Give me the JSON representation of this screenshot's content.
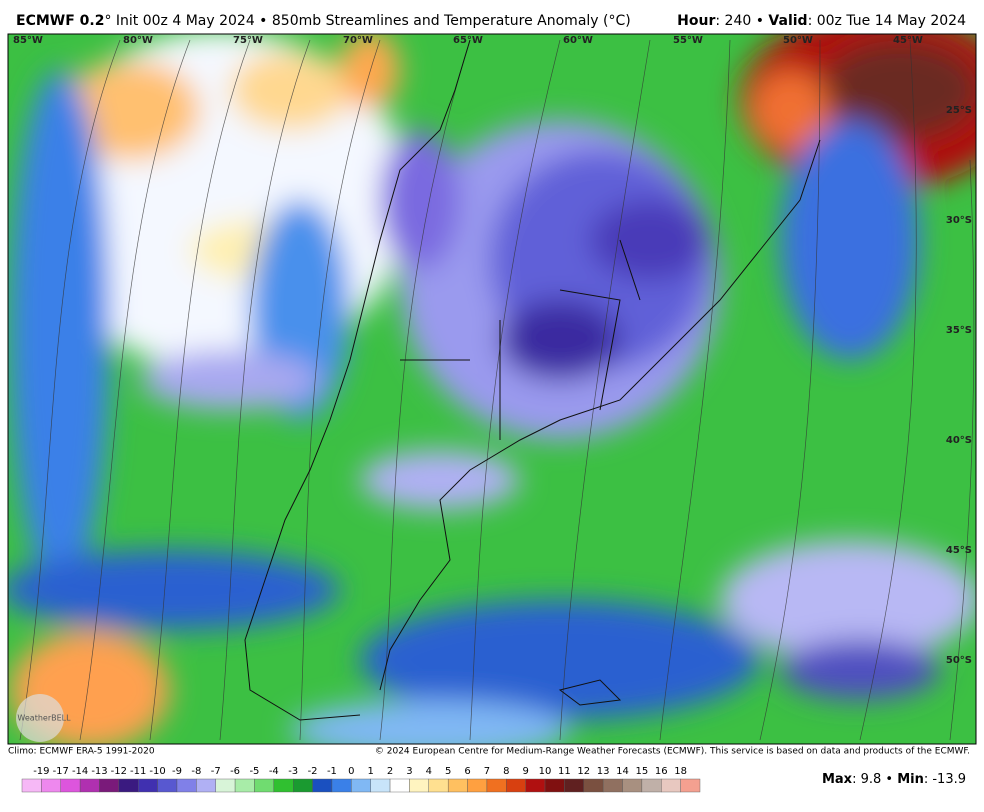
{
  "header": {
    "model": "ECMWF 0.2",
    "title_rest": "° Init 00z 4 May 2024 • 850mb Streamlines and Temperature Anomaly (°C)",
    "hour_label": "Hour",
    "hour_value": ": 240 • ",
    "valid_label": "Valid",
    "valid_value": ": 00z Tue 14 May 2024"
  },
  "map": {
    "lon_labels": [
      "85°W",
      "80°W",
      "75°W",
      "70°W",
      "65°W",
      "60°W",
      "55°W",
      "50°W",
      "45°W"
    ],
    "lat_labels": [
      "25°S",
      "30°S",
      "35°S",
      "40°S",
      "45°S",
      "50°S"
    ],
    "logo": "WeatherBELL"
  },
  "footer": {
    "climo": "Climo: ECMWF ERA-5 1991-2020",
    "copyright": "© 2024 European Centre for Medium-Range Weather Forecasts (ECMWF). This service is based on data and products of the ECMWF."
  },
  "colorbar": {
    "labels": [
      -19,
      -17,
      -14,
      -13,
      -12,
      -11,
      -10,
      -9,
      -8,
      -7,
      -6,
      -5,
      -4,
      -3,
      -2,
      -1,
      0,
      1,
      2,
      3,
      4,
      5,
      6,
      7,
      8,
      9,
      10,
      11,
      12,
      13,
      14,
      15,
      16,
      18
    ],
    "colors": [
      "#f6b8f6",
      "#ee88ee",
      "#dd55dd",
      "#b030b0",
      "#7a1a7a",
      "#3a1a80",
      "#4030b0",
      "#5858d0",
      "#8080e8",
      "#b0b0f4",
      "#d8f4d8",
      "#a8eca8",
      "#70dc70",
      "#30c030",
      "#1a9a30",
      "#1a50c0",
      "#3a80e8",
      "#80b8f4",
      "#c8e4fa",
      "#ffffff",
      "#fff4c0",
      "#ffe090",
      "#ffc060",
      "#ffa040",
      "#f07020",
      "#d84010",
      "#b01010",
      "#801010",
      "#602020",
      "#7a5040",
      "#907060",
      "#a89080",
      "#c0b0a8",
      "#e8c8c0",
      "#f4a090"
    ]
  },
  "stats": {
    "max_label": "Max",
    "max_value": ": 9.8 • ",
    "min_label": "Min",
    "min_value": ": -13.9"
  }
}
